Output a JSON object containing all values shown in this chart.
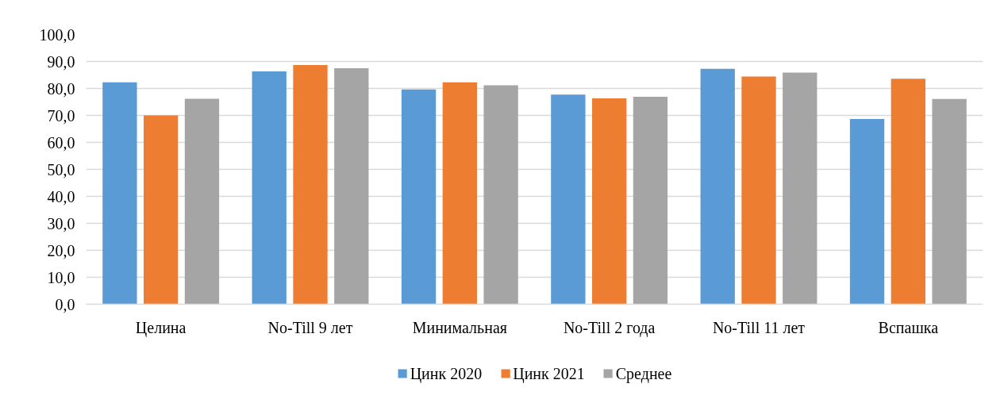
{
  "chart_data": {
    "type": "bar",
    "categories": [
      "Целина",
      "No-Till 9 лет",
      "Минимальная",
      "No-Till 2 года",
      "No-Till 11 лет",
      "Вспашка"
    ],
    "series": [
      {
        "name": "Цинк 2020",
        "color": "#5b9bd5",
        "values": [
          82.3,
          86.3,
          79.6,
          77.7,
          87.3,
          68.7
        ]
      },
      {
        "name": "Цинк 2021",
        "color": "#ed7d31",
        "values": [
          70.0,
          88.7,
          82.3,
          76.3,
          84.4,
          83.6
        ]
      },
      {
        "name": "Среднее",
        "color": "#a5a5a5",
        "values": [
          76.2,
          87.5,
          81.2,
          76.9,
          85.9,
          76.1
        ]
      }
    ],
    "ylim": [
      0,
      100
    ],
    "yticks": [
      {
        "value": 0,
        "label": "0,0"
      },
      {
        "value": 10,
        "label": "10,0"
      },
      {
        "value": 20,
        "label": "20,0"
      },
      {
        "value": 30,
        "label": "30,0"
      },
      {
        "value": 40,
        "label": "40,0"
      },
      {
        "value": 50,
        "label": "50,0"
      },
      {
        "value": 60,
        "label": "60,0"
      },
      {
        "value": 70,
        "label": "70,0"
      },
      {
        "value": 80,
        "label": "80,0"
      },
      {
        "value": 90,
        "label": "90,0"
      },
      {
        "value": 100,
        "label": "100,0"
      }
    ],
    "grid": "y",
    "legend": "bottom"
  }
}
